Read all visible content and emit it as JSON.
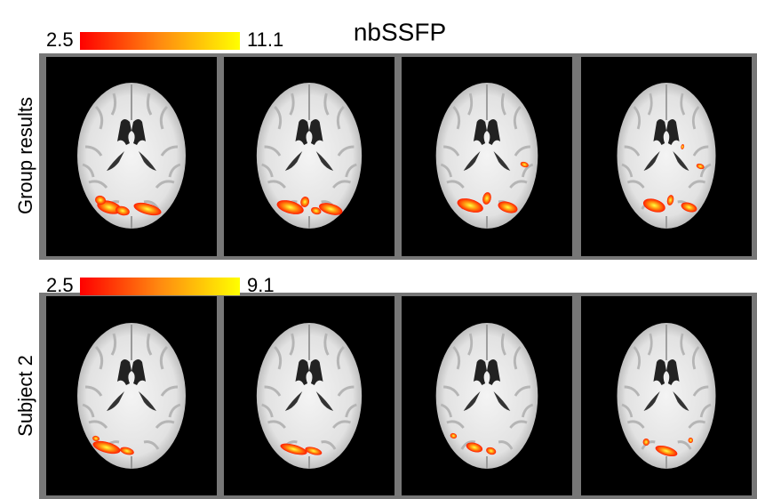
{
  "title": "nbSSFP",
  "rows": [
    {
      "label": "Group results",
      "colorbar": {
        "min": 2.5,
        "max": 11.1
      }
    },
    {
      "label": "Subject 2",
      "colorbar": {
        "min": 2.5,
        "max": 9.1
      }
    }
  ]
}
